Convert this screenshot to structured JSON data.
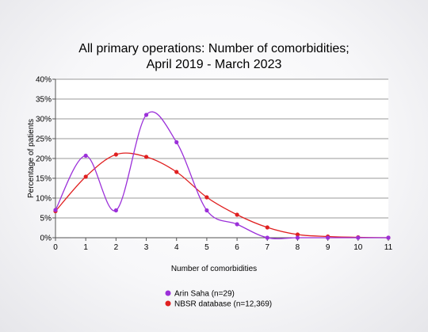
{
  "chart_data": {
    "type": "line",
    "title_line1": "All primary operations: Number of comorbidities;",
    "title_line2": "April 2019 - March 2023",
    "xlabel": "Number of comorbidities",
    "ylabel": "Percentage of patients",
    "x": [
      0,
      1,
      2,
      3,
      4,
      5,
      6,
      7,
      8,
      9,
      10,
      11
    ],
    "xlim": [
      0,
      11
    ],
    "ylim": [
      0,
      40
    ],
    "yticks": [
      "0%",
      "5%",
      "10%",
      "15%",
      "20%",
      "25%",
      "30%",
      "35%",
      "40%"
    ],
    "grid": true,
    "legend_position": "bottom",
    "series": [
      {
        "name": "Arin Saha (n=29)",
        "color": "#9b30d9",
        "values": [
          7,
          20.7,
          6.9,
          31,
          24.1,
          6.9,
          3.4,
          0,
          0,
          0,
          0,
          0
        ]
      },
      {
        "name": "NBSR database (n=12,369)",
        "color": "#e02020",
        "values": [
          6.7,
          15.4,
          21,
          20.4,
          16.6,
          10.2,
          5.8,
          2.6,
          0.8,
          0.3,
          0.1,
          0
        ]
      }
    ]
  }
}
